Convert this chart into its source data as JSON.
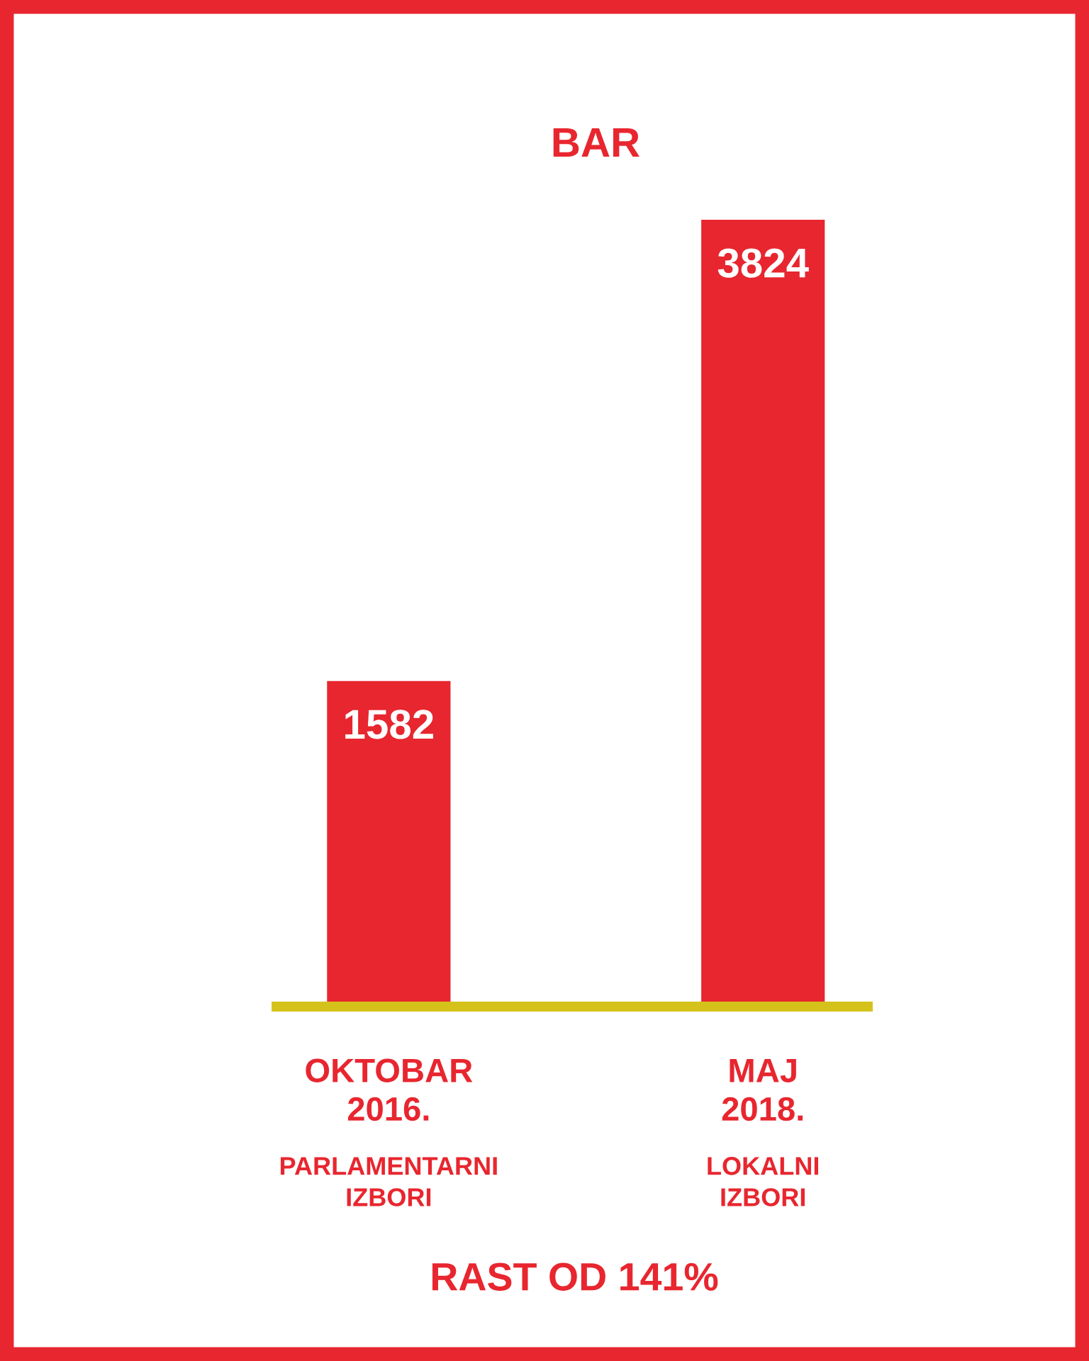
{
  "chart_data": {
    "type": "bar",
    "title": "BAR",
    "categories": [
      "OKTOBAR\n2016.",
      "MAJ\n2018."
    ],
    "values": [
      1582,
      3824
    ],
    "color": "#e8262f",
    "data_labels": true,
    "grid": false,
    "annotations": [
      "PARLAMENTARNI\nIZBORI",
      "LOKALNI\nIZBORI",
      "RAST OD 141%"
    ]
  }
}
